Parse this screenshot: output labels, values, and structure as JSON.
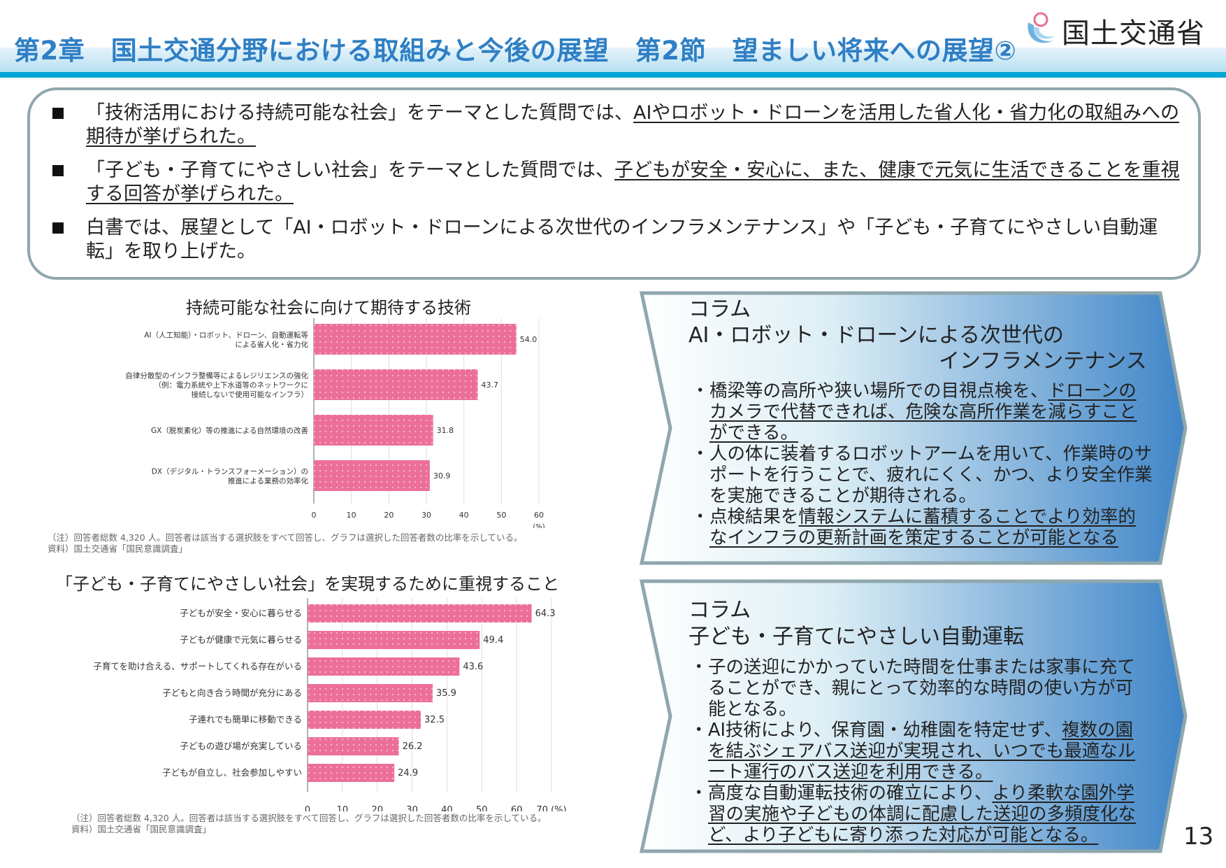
{
  "header": {
    "title": "第2章　国土交通分野における取組みと今後の展望　第2節　望ましい将来への展望②",
    "logo_text": "国土交通省"
  },
  "summary": {
    "bullets": [
      {
        "parts": [
          {
            "t": "「技術活用における持続可能な社会」をテーマとした質問では、",
            "u": false
          },
          {
            "t": "AIやロボット・ドローンを活用した省人化・省力化の取組みへの期待が挙げられた。",
            "u": true
          }
        ]
      },
      {
        "parts": [
          {
            "t": "「子ども・子育てにやさしい社会」をテーマとした質問では、",
            "u": false
          },
          {
            "t": "子どもが安全・安心に、また、健康で元気に生活できることを重視する回答が挙げられた。",
            "u": true
          }
        ]
      },
      {
        "parts": [
          {
            "t": "白書では、展望として「AI・ロボット・ドローンによる次世代のインフラメンテナンス」や「子ども・子育てにやさしい自動運転」を取り上げた。",
            "u": false
          }
        ]
      }
    ]
  },
  "chart_data": [
    {
      "type": "bar",
      "orientation": "horizontal",
      "title": "持続可能な社会に向けて期待する技術",
      "categories": [
        [
          "AI（人工知能）・ロボット、ドローン、自動運転等",
          "による省人化・省力化"
        ],
        [
          "自律分散型のインフラ整備等によるレジリエンスの強化",
          "（例：電力系統や上下水道等のネットワークに",
          "接続しないで使用可能なインフラ）"
        ],
        [
          "GX（脱炭素化）等の推進による自然環境の改善"
        ],
        [
          "DX（デジタル・トランスフォーメーション）の",
          "推進による業務の効率化"
        ]
      ],
      "values": [
        54.0,
        43.7,
        31.8,
        30.9
      ],
      "xlim": [
        0,
        60
      ],
      "xticks": [
        0,
        10,
        20,
        30,
        40,
        50,
        60
      ],
      "unit": "(%)",
      "grid": true,
      "bar_color": "#ec6f9a",
      "notes": [
        "（注）回答者総数 4,320 人。回答者は該当する選択肢をすべて回答し、グラフは選択した回答者数の比率を示している。",
        "資料）国土交通省「国民意識調査」"
      ]
    },
    {
      "type": "bar",
      "orientation": "horizontal",
      "title": "「子ども・子育てにやさしい社会」を実現するために重視すること",
      "categories": [
        [
          "子どもが安全・安心に暮らせる"
        ],
        [
          "子どもが健康で元気に暮らせる"
        ],
        [
          "子育てを助け合える、サポートしてくれる存在がいる"
        ],
        [
          "子どもと向き合う時間が充分にある"
        ],
        [
          "子連れでも簡単に移動できる"
        ],
        [
          "子どもの遊び場が充実している"
        ],
        [
          "子どもが自立し、社会参加しやすい"
        ]
      ],
      "values": [
        64.3,
        49.4,
        43.6,
        35.9,
        32.5,
        26.2,
        24.9
      ],
      "xlim": [
        0,
        70
      ],
      "xticks": [
        0,
        10,
        20,
        30,
        40,
        50,
        60,
        70
      ],
      "unit": "(%)",
      "grid": true,
      "bar_color": "#ec6f9a",
      "notes": [
        "（注）回答者総数 4,320 人。回答者は該当する選択肢をすべて回答し、グラフは選択した回答者数の比率を示している。",
        "資料）国土交通省「国民意識調査」"
      ]
    }
  ],
  "columns": [
    {
      "label": "コラム",
      "title1": "AI・ロボット・ドローンによる次世代の",
      "title2": "インフラメンテナンス",
      "items": [
        {
          "parts": [
            {
              "t": "橋梁等の高所や狭い場所での目視点検を、",
              "u": false
            },
            {
              "t": "ドローンのカメラで代替できれば、危険な高所作業を減らすことができる。",
              "u": true
            }
          ]
        },
        {
          "parts": [
            {
              "t": "人の体に装着するロボットアームを用いて、作業時のサポートを行うことで、疲れにくく、かつ、より安全作業を実施できることが期待される。",
              "u": false
            }
          ]
        },
        {
          "parts": [
            {
              "t": "点検結果を",
              "u": false
            },
            {
              "t": "情報システムに蓄積することでより効率的なインフラの更新計画を策定することが可能となる",
              "u": true
            }
          ]
        }
      ]
    },
    {
      "label": "コラム",
      "title1": "子ども・子育てにやさしい自動運転",
      "title2": "",
      "items": [
        {
          "parts": [
            {
              "t": "子の送迎にかかっていた時間を仕事または家事に充てることができ、親にとって効率的な時間の使い方が可能となる。",
              "u": false
            }
          ]
        },
        {
          "parts": [
            {
              "t": "AI技術により、保育園・幼稚園を特定せず、",
              "u": false
            },
            {
              "t": "複数の園を結ぶシェアバス送迎が実現され、いつでも最適なルート運行のバス送迎を利用できる。",
              "u": true
            }
          ]
        },
        {
          "parts": [
            {
              "t": "高度な自動運転技術の確立により、",
              "u": false
            },
            {
              "t": "より柔軟な園外学習の実施や子どもの体調に配慮した送迎の多頻度化など、より子どもに寄り添った対応が可能となる。",
              "u": true
            }
          ]
        }
      ]
    }
  ],
  "page_number": "13",
  "colors": {
    "title": "#2f7fc4",
    "header_line": "#00a6d6",
    "bar": "#ec6f9a",
    "panel_border": "#8fa7ad",
    "panel_gradient_end": "#3f85c8"
  }
}
